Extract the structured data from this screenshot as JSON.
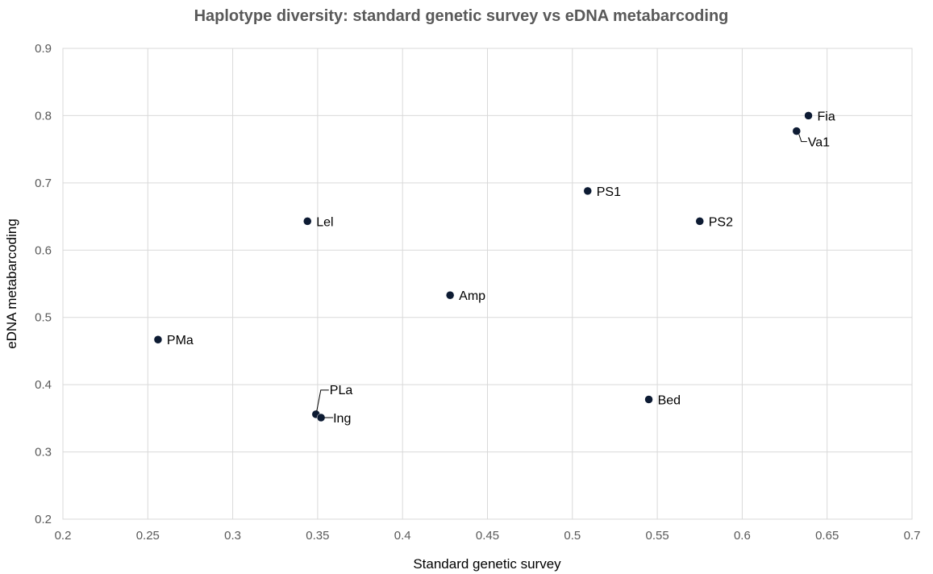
{
  "chart_data": {
    "type": "scatter",
    "title": "Haplotype diversity: standard genetic survey vs eDNA metabarcoding",
    "xlabel": "Standard genetic survey",
    "ylabel": "eDNA metabarcoding",
    "xlim": [
      0.2,
      0.7
    ],
    "ylim": [
      0.2,
      0.9
    ],
    "xticks": [
      "0.2",
      "0.25",
      "0.3",
      "0.35",
      "0.4",
      "0.45",
      "0.5",
      "0.55",
      "0.6",
      "0.65",
      "0.7"
    ],
    "yticks": [
      "0.2",
      "0.3",
      "0.4",
      "0.5",
      "0.6",
      "0.7",
      "0.8",
      "0.9"
    ],
    "grid": true,
    "legend": "none",
    "marker_color": "#0d1b33",
    "points": [
      {
        "label": "PMa",
        "x": 0.256,
        "y": 0.467
      },
      {
        "label": "Lel",
        "x": 0.344,
        "y": 0.643
      },
      {
        "label": "PLa",
        "x": 0.349,
        "y": 0.356
      },
      {
        "label": "Ing",
        "x": 0.352,
        "y": 0.351
      },
      {
        "label": "Amp",
        "x": 0.428,
        "y": 0.533
      },
      {
        "label": "PS1",
        "x": 0.509,
        "y": 0.688
      },
      {
        "label": "Bed",
        "x": 0.545,
        "y": 0.378
      },
      {
        "label": "PS2",
        "x": 0.575,
        "y": 0.643
      },
      {
        "label": "Va1",
        "x": 0.632,
        "y": 0.777
      },
      {
        "label": "Fia",
        "x": 0.639,
        "y": 0.8
      }
    ]
  }
}
